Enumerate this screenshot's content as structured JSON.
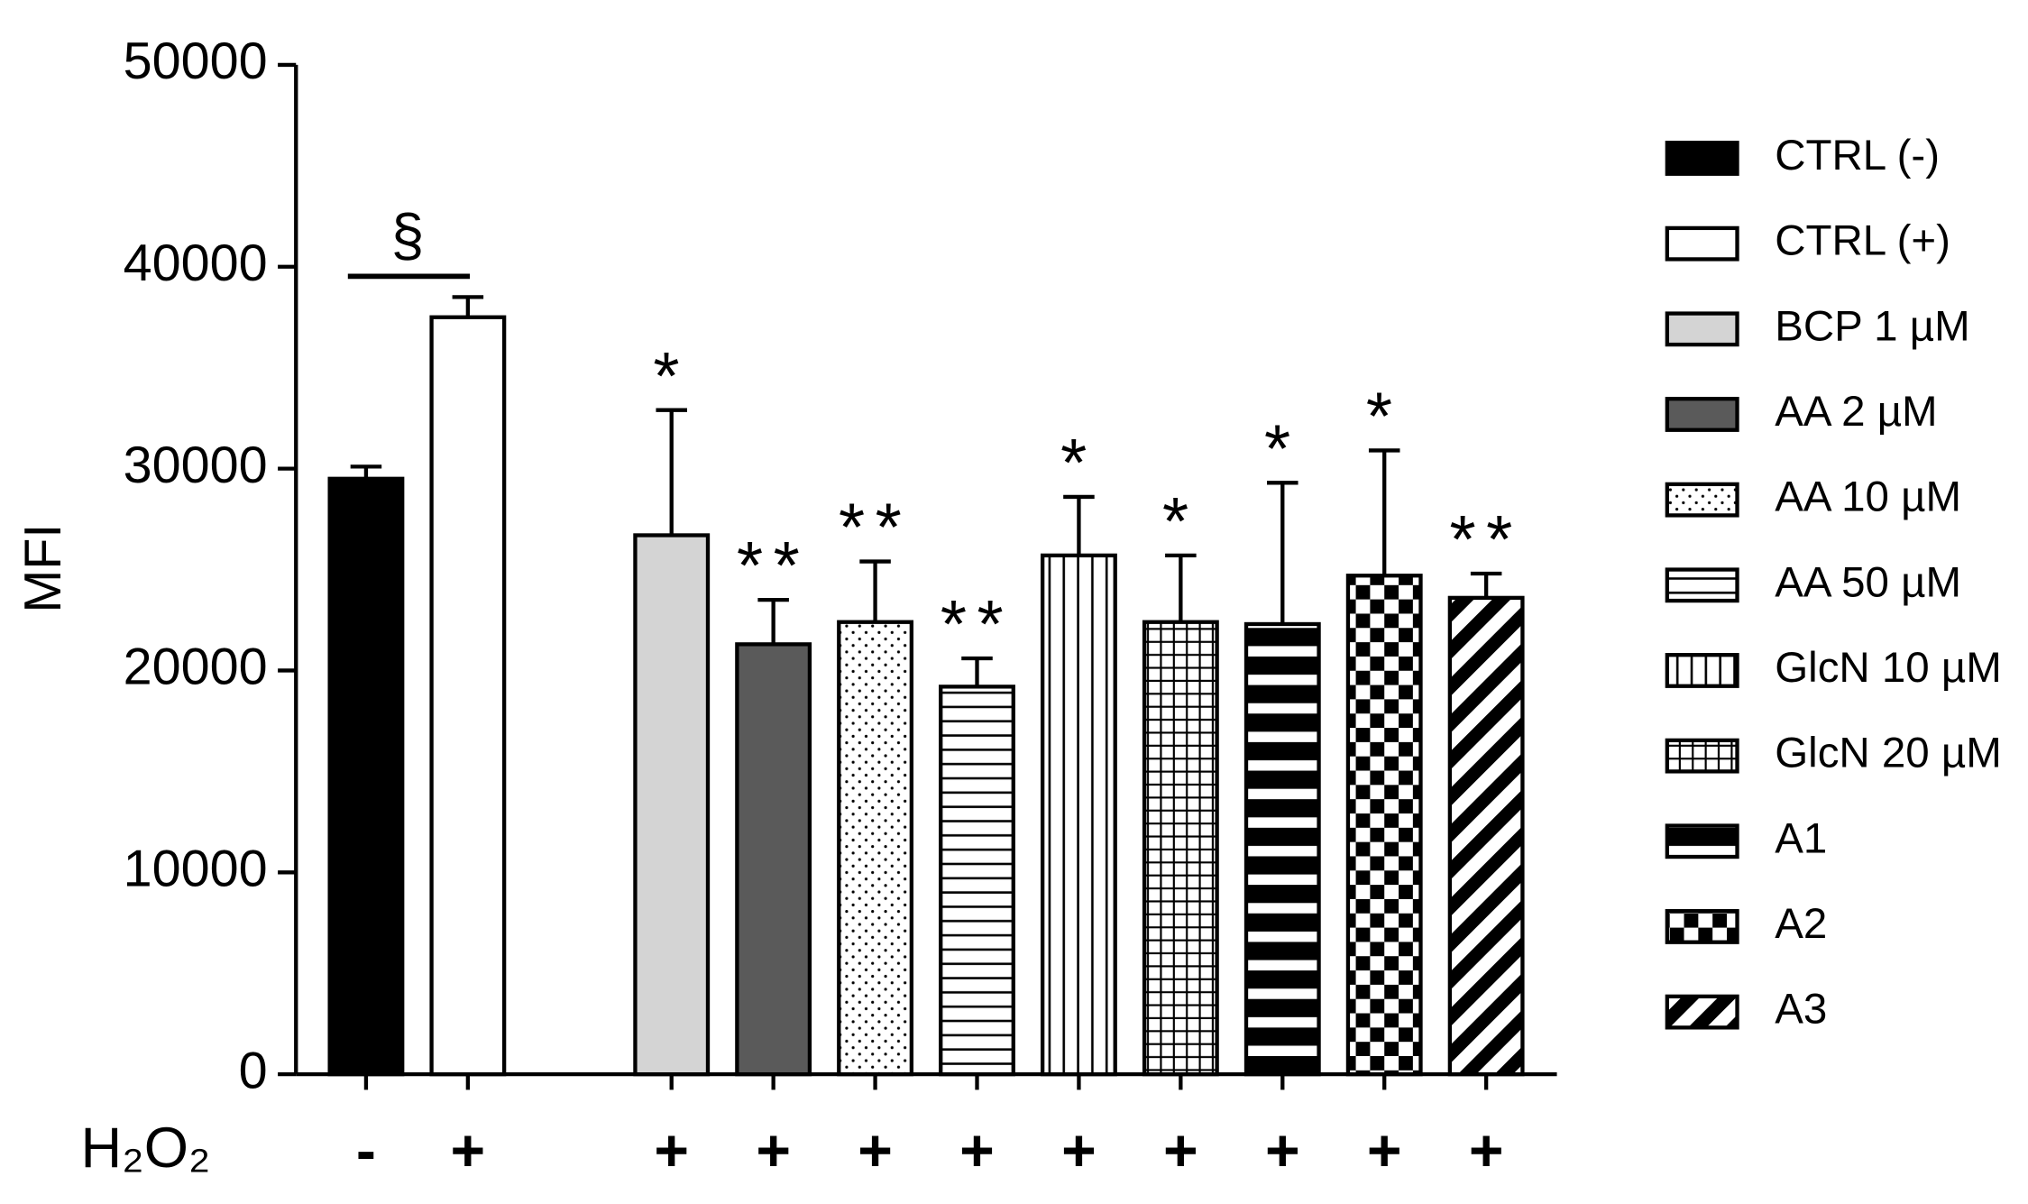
{
  "chart_data": {
    "type": "bar",
    "ylabel": "MFI",
    "categories": [
      "CTRL (-)",
      "CTRL (+)",
      "BCP 1 µM",
      "AA 2 µM",
      "AA 10 µM",
      "AA 50 µM",
      "GlcN 10 µM",
      "GlcN 20 µM",
      "A1",
      "A2",
      "A3"
    ],
    "values": [
      29500,
      37500,
      26700,
      21300,
      22400,
      19200,
      25700,
      22400,
      22300,
      24700,
      23600
    ],
    "errors": [
      600,
      1000,
      6200,
      2200,
      3000,
      1400,
      2900,
      3300,
      7000,
      6200,
      1200
    ],
    "significance": [
      null,
      null,
      "*",
      "**",
      "**",
      "**",
      "*",
      "*",
      "*",
      "*",
      "**"
    ],
    "comparison_label": "§",
    "treatment_title": "H₂O₂",
    "treatment_labels": [
      "-",
      "+",
      "+",
      "+",
      "+",
      "+",
      "+",
      "+",
      "+",
      "+",
      "+"
    ],
    "ylim": [
      0,
      50000
    ],
    "yticks": [
      0,
      10000,
      20000,
      30000,
      40000,
      50000
    ]
  }
}
